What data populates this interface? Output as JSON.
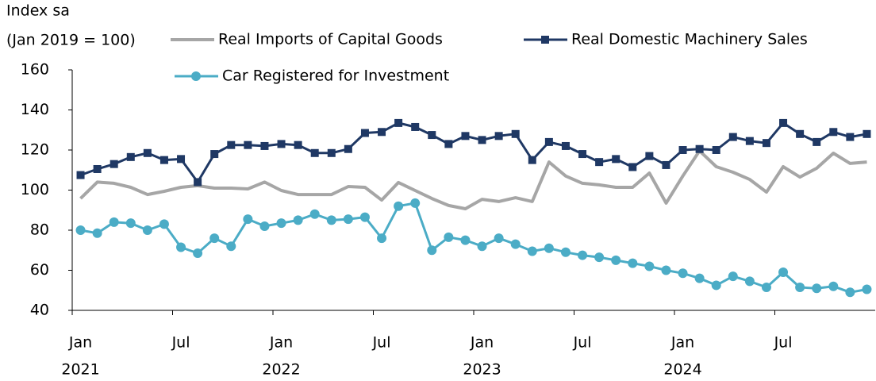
{
  "chart_data": {
    "type": "line",
    "y_label_lines": [
      "Index sa",
      "(Jan 2019 = 100)"
    ],
    "categories": [
      "Jan",
      null,
      null,
      null,
      null,
      null,
      "Jul",
      null,
      null,
      null,
      null,
      null,
      "Jan",
      null,
      null,
      null,
      null,
      null,
      "Jul",
      null,
      null,
      null,
      null,
      null,
      "Jan",
      null,
      null,
      null,
      null,
      null,
      "Jul",
      null,
      null,
      null,
      null,
      null,
      "Jan",
      null,
      null,
      null,
      null,
      null,
      "Jul",
      null,
      null,
      null,
      null,
      null
    ],
    "years": [
      "2021",
      "2022",
      "2023",
      "2024"
    ],
    "ylim": [
      40,
      160
    ],
    "yticks": [
      40,
      60,
      80,
      100,
      120,
      140,
      160
    ],
    "grid": false,
    "series": [
      {
        "name": "Real Imports of Capital Goods",
        "color": "#a6a6a6",
        "marker": "none",
        "values": [
          95.8,
          104,
          103.4,
          101.4,
          97.8,
          99.4,
          101.4,
          102.2,
          101,
          101,
          100.6,
          104,
          99.8,
          97.8,
          97.8,
          97.8,
          101.8,
          101.4,
          95,
          103.8,
          99.8,
          95.8,
          92.3,
          90.7,
          95.4,
          94.3,
          96.2,
          94.3,
          114,
          107,
          103.4,
          102.6,
          101.4,
          101.4,
          108.5,
          93.5,
          107,
          119.6,
          111.7,
          108.9,
          105.3,
          99,
          111.7,
          106.5,
          110.9,
          118.4,
          113.3,
          114
        ]
      },
      {
        "name": "Real Domestic Machinery Sales",
        "color": "#1f3864",
        "marker": "square",
        "values": [
          107.5,
          110.5,
          113,
          116.5,
          118.5,
          115,
          115.5,
          104,
          118,
          122.5,
          122.5,
          122,
          123,
          122.5,
          118.5,
          118.5,
          120.5,
          128.5,
          129,
          133.5,
          131.5,
          127.5,
          123,
          127,
          125,
          127,
          128,
          115,
          124,
          122,
          118,
          114,
          115.5,
          111.5,
          117,
          112.5,
          120,
          120.5,
          120,
          126.5,
          124.5,
          123.5,
          133.5,
          128,
          124,
          129,
          126.5,
          128
        ]
      },
      {
        "name": "Car Registered for Investment",
        "color": "#4bacc6",
        "marker": "circle",
        "values": [
          80,
          78.5,
          84,
          83.5,
          80,
          83,
          71.5,
          68.5,
          76,
          72,
          85.5,
          82,
          83.5,
          85,
          88,
          85,
          85.5,
          86.5,
          76,
          92,
          93.5,
          70,
          76.5,
          75,
          72,
          76,
          73,
          69.5,
          71,
          69,
          67.5,
          66.5,
          65,
          63.5,
          62,
          60,
          58.5,
          56,
          52.5,
          57,
          54.5,
          51.5,
          59,
          51.5,
          51,
          52,
          49,
          50.5
        ]
      }
    ]
  }
}
